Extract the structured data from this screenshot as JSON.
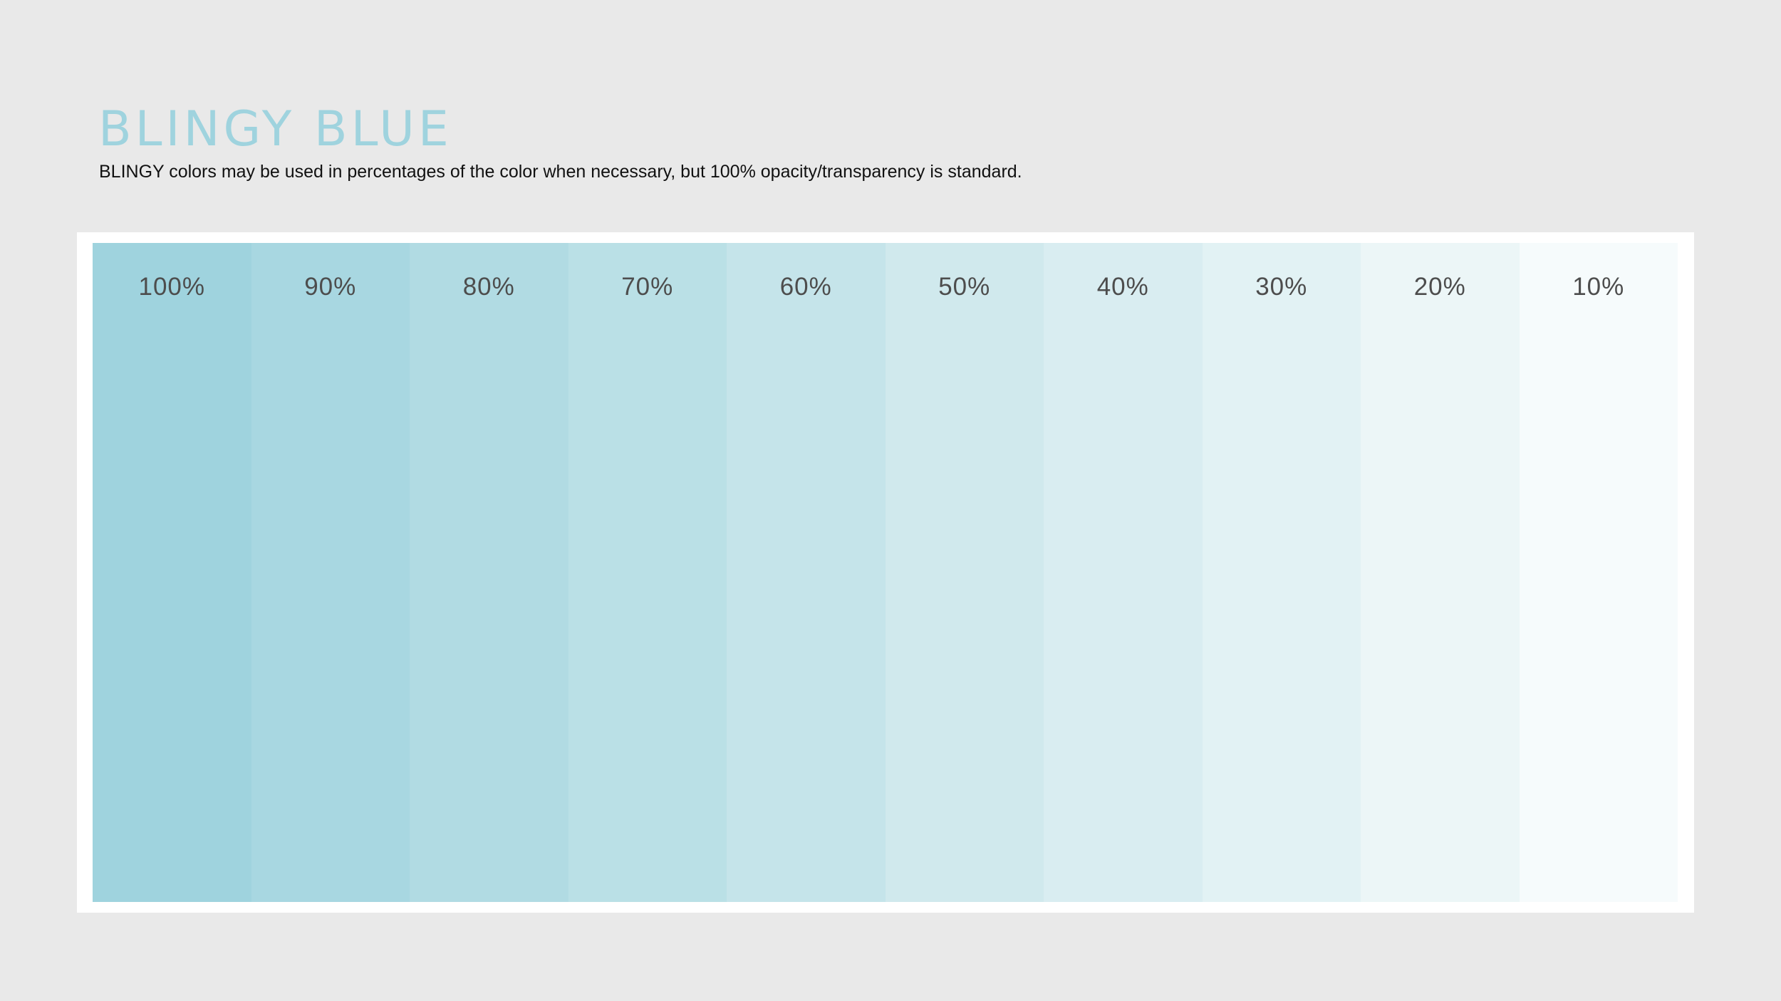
{
  "header": {
    "title": "BLINGY BLUE",
    "subtitle": "BLINGY colors may be used in percentages of the color when necessary, but 100% opacity/transparency is standard.",
    "title_color": "#9fd3de"
  },
  "swatches": [
    {
      "label": "100%",
      "opacity": 1.0,
      "color": "#9fd3de"
    },
    {
      "label": "90%",
      "opacity": 0.9,
      "color": "#a8d7e1"
    },
    {
      "label": "80%",
      "opacity": 0.8,
      "color": "#b1dbe3"
    },
    {
      "label": "70%",
      "opacity": 0.7,
      "color": "#bae0e6"
    },
    {
      "label": "60%",
      "opacity": 0.6,
      "color": "#c5e4ea"
    },
    {
      "label": "50%",
      "opacity": 0.5,
      "color": "#d0e9ed"
    },
    {
      "label": "40%",
      "opacity": 0.4,
      "color": "#d9edf1"
    },
    {
      "label": "30%",
      "opacity": 0.3,
      "color": "#e2f2f4"
    },
    {
      "label": "20%",
      "opacity": 0.2,
      "color": "#ecf6f7"
    },
    {
      "label": "10%",
      "opacity": 0.1,
      "color": "#f6fbfc"
    }
  ]
}
